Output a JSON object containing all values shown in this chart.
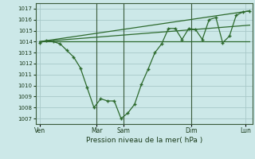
{
  "background_color": "#cce8e8",
  "grid_color": "#a8c8c8",
  "line_color": "#2d6a2d",
  "xlabel": "Pression niveau de la mer( hPa )",
  "ylim": [
    1006.5,
    1017.5
  ],
  "yticks": [
    1007,
    1008,
    1009,
    1010,
    1011,
    1012,
    1013,
    1014,
    1015,
    1016,
    1017
  ],
  "xlim": [
    0,
    16
  ],
  "xtick_positions": [
    0.3,
    4.5,
    6.5,
    11.5,
    15.5
  ],
  "xtick_labels": [
    "Ven",
    "Mar",
    "Sam",
    "Dim",
    "Lun"
  ],
  "vlines": [
    4.5,
    6.5,
    11.5
  ],
  "series_main_x": [
    0.3,
    0.8,
    1.3,
    1.8,
    2.3,
    2.8,
    3.3,
    3.8,
    4.3,
    4.8,
    5.3,
    5.8,
    6.3,
    6.8,
    7.3,
    7.8,
    8.3,
    8.8,
    9.3,
    9.8,
    10.3,
    10.8,
    11.3,
    11.8,
    12.3,
    12.8,
    13.3,
    13.8,
    14.3,
    14.8,
    15.3,
    15.8
  ],
  "series_main_y": [
    1013.9,
    1014.1,
    1014.0,
    1013.8,
    1013.2,
    1012.6,
    1011.6,
    1009.8,
    1008.0,
    1008.8,
    1008.6,
    1008.6,
    1007.0,
    1007.5,
    1008.3,
    1010.1,
    1011.5,
    1013.0,
    1013.8,
    1015.2,
    1015.2,
    1014.2,
    1015.2,
    1015.1,
    1014.2,
    1016.0,
    1016.2,
    1013.9,
    1014.5,
    1016.4,
    1016.7,
    1016.8
  ],
  "trend_line1_x": [
    0.3,
    15.8
  ],
  "trend_line1_y": [
    1014.0,
    1014.0
  ],
  "trend_line2_x": [
    0.3,
    15.8
  ],
  "trend_line2_y": [
    1014.0,
    1015.5
  ],
  "trend_line3_x": [
    0.3,
    15.8
  ],
  "trend_line3_y": [
    1014.0,
    1016.8
  ]
}
